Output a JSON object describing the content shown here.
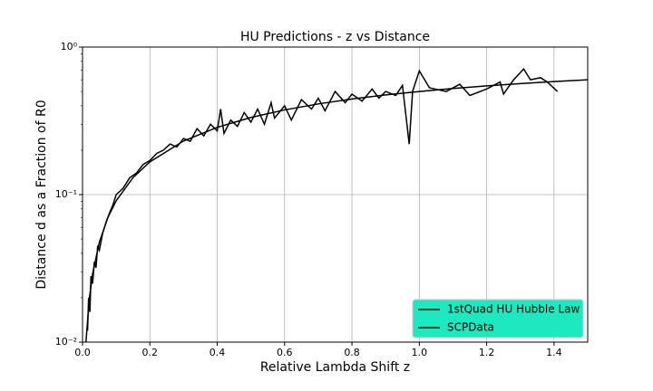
{
  "chart_data": {
    "type": "line",
    "title": "HU Predictions - z vs Distance",
    "xlabel": "Relative Lambda Shift z",
    "ylabel": "Distance d as a Fraction of R0",
    "xlim": [
      0,
      1.5
    ],
    "ylim": [
      0.01,
      1
    ],
    "yscale": "log",
    "xticks": [
      {
        "value": 0,
        "label": "0.0"
      },
      0.2,
      0.4,
      0.6,
      0.8,
      {
        "value": 1,
        "label": "1.0"
      },
      1.2,
      1.4
    ],
    "yticks": [
      {
        "value": 0.01,
        "label": "10⁻²"
      },
      {
        "value": 0.1,
        "label": "10⁻¹"
      },
      {
        "value": 1,
        "label": "10⁰"
      }
    ],
    "grid": true,
    "legend": "lower right",
    "legend_facecolor": "#1ee8c0",
    "series": [
      {
        "name": "1stQuad HU Hubble Law",
        "color": "#000000",
        "x": [
          0.01,
          0.02,
          0.03,
          0.05,
          0.075,
          0.1,
          0.15,
          0.2,
          0.3,
          0.4,
          0.5,
          0.6,
          0.7,
          0.8,
          0.9,
          1.0,
          1.1,
          1.2,
          1.3,
          1.4,
          1.5
        ],
        "values": [
          0.0099,
          0.0196,
          0.0291,
          0.0476,
          0.0698,
          0.0909,
          0.1304,
          0.1667,
          0.2308,
          0.2857,
          0.3333,
          0.375,
          0.4118,
          0.4444,
          0.4737,
          0.5,
          0.5238,
          0.5455,
          0.5652,
          0.5833,
          0.6
        ]
      },
      {
        "name": "SCPData",
        "color": "#000000",
        "x": [
          0.015,
          0.018,
          0.022,
          0.025,
          0.03,
          0.035,
          0.04,
          0.045,
          0.05,
          0.06,
          0.07,
          0.08,
          0.09,
          0.1,
          0.12,
          0.14,
          0.16,
          0.18,
          0.2,
          0.22,
          0.24,
          0.26,
          0.28,
          0.3,
          0.32,
          0.34,
          0.36,
          0.38,
          0.4,
          0.41,
          0.42,
          0.44,
          0.46,
          0.48,
          0.5,
          0.52,
          0.54,
          0.56,
          0.57,
          0.6,
          0.62,
          0.65,
          0.68,
          0.7,
          0.72,
          0.75,
          0.78,
          0.8,
          0.83,
          0.86,
          0.88,
          0.9,
          0.93,
          0.95,
          0.97,
          0.98,
          1.0,
          1.03,
          1.08,
          1.12,
          1.15,
          1.2,
          1.24,
          1.25,
          1.28,
          1.31,
          1.33,
          1.36,
          1.38,
          1.41
        ],
        "values": [
          0.012,
          0.02,
          0.016,
          0.028,
          0.025,
          0.035,
          0.032,
          0.045,
          0.042,
          0.055,
          0.065,
          0.075,
          0.085,
          0.1,
          0.11,
          0.13,
          0.14,
          0.16,
          0.17,
          0.19,
          0.2,
          0.22,
          0.21,
          0.24,
          0.23,
          0.28,
          0.25,
          0.3,
          0.27,
          0.38,
          0.26,
          0.32,
          0.29,
          0.36,
          0.31,
          0.38,
          0.3,
          0.42,
          0.33,
          0.4,
          0.32,
          0.44,
          0.38,
          0.45,
          0.37,
          0.5,
          0.42,
          0.48,
          0.43,
          0.52,
          0.45,
          0.5,
          0.47,
          0.55,
          0.22,
          0.5,
          0.69,
          0.53,
          0.5,
          0.56,
          0.47,
          0.52,
          0.58,
          0.48,
          0.6,
          0.71,
          0.6,
          0.62,
          0.58,
          0.5
        ]
      }
    ]
  }
}
